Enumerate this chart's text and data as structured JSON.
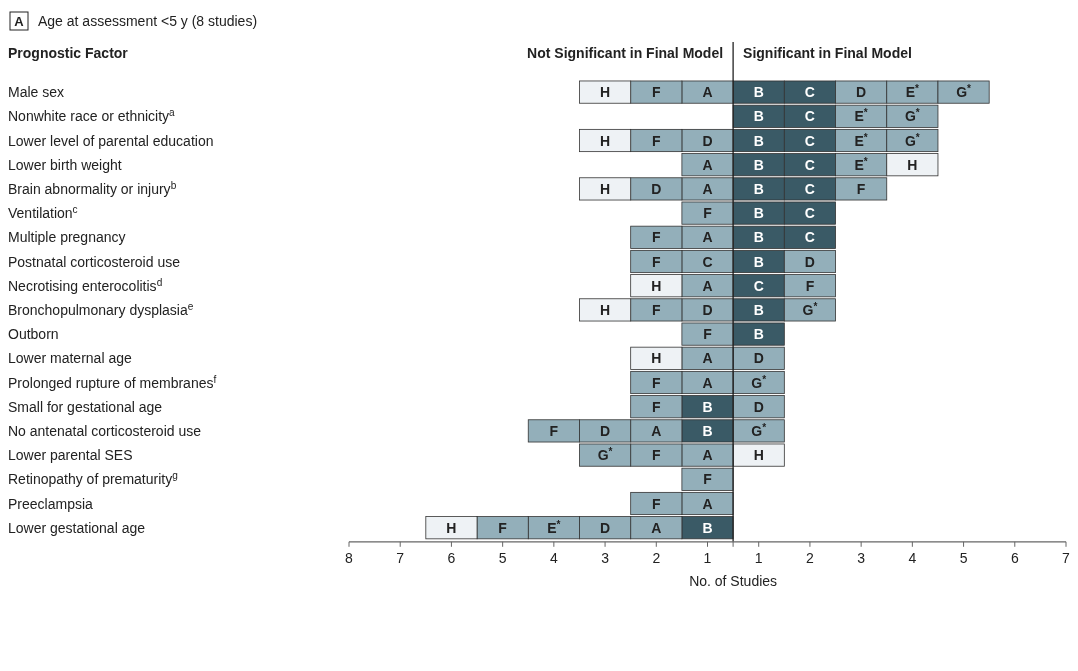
{
  "chart_data": {
    "type": "bar",
    "orientation": "horizontal",
    "stacked": true,
    "title": "Age at assessment <5 y (8 studies)",
    "ylabel": "Prognostic Factor",
    "xlabel": "No. of Studies",
    "annotations": [
      "A",
      "Not Significant in Final Model",
      "Significant in Final Model"
    ],
    "categories": [
      "Male sex",
      "Nonwhite race or ethnicity$^{a}$",
      "Lower level of parental education",
      "Lower birth weight",
      "Brain abnormality or injury$^{b}$",
      "Ventilation$^{c}$",
      "Multiple pregnancy",
      "Postnatal corticosteroid use",
      "Necrotising enterocolitis$^{d}$",
      "Bronchopulmonary dysplasia$^{e}$",
      "Outborn",
      "Lower maternal age",
      "Prolonged rupture of membranes$^{f}$",
      "Small for gestational age",
      "No antenatal corticosteroid use",
      "Lower parental SES",
      "Retinopathy of prematurity$^{g}$",
      "Preeclampsia",
      "Lower gestational age"
    ],
    "xlim": [
      -7.5,
      6.5
    ],
    "xticks": [
      {
        "value": -7.5,
        "label": "8"
      },
      {
        "value": -6.5,
        "label": "7"
      },
      {
        "value": -5.5,
        "label": "6"
      },
      {
        "value": -4.5,
        "label": "5"
      },
      {
        "value": -3.5,
        "label": "4"
      },
      {
        "value": -2.5,
        "label": "3"
      },
      {
        "value": -1.5,
        "label": "2"
      },
      {
        "value": -0.5,
        "label": "1"
      },
      {
        "value": 0,
        "label": null
      },
      {
        "value": 0.5,
        "label": "1"
      },
      {
        "value": 1.5,
        "label": "2"
      },
      {
        "value": 2.5,
        "label": "3"
      },
      {
        "value": 3.5,
        "label": "4"
      },
      {
        "value": 4.5,
        "label": "5"
      },
      {
        "value": 5.5,
        "label": "6"
      },
      {
        "value": 6.5,
        "label": "7"
      }
    ],
    "ref_lines": [
      {
        "axis": "x",
        "value": 0,
        "color": "#222222"
      }
    ],
    "series": [
      {
        "values": [
          1,
          1,
          1,
          1,
          1,
          1,
          1,
          1,
          1,
          1,
          1,
          1,
          1,
          1,
          1,
          1,
          null,
          null,
          null
        ],
        "colors": [
          "#3a5a66",
          "#3a5a66",
          "#3a5a66",
          "#3a5a66",
          "#3a5a66",
          "#3a5a66",
          "#3a5a66",
          "#3a5a66",
          "#3a5a66",
          "#3a5a66",
          "#3a5a66",
          "#93afba",
          "#93afba",
          "#93afba",
          "#93afba",
          "#eef2f5",
          null,
          null,
          null
        ],
        "value_labels": [
          "B",
          "B",
          "B",
          "B",
          "B",
          "B",
          "B",
          "B",
          "C",
          "B",
          "B",
          "D",
          "G$^{*}$",
          "D",
          "G$^{*}$",
          "H",
          null,
          null,
          null
        ]
      },
      {
        "values": [
          1,
          1,
          1,
          1,
          1,
          1,
          1,
          1,
          1,
          1,
          null,
          null,
          null,
          null,
          null,
          null,
          null,
          null,
          null
        ],
        "colors": [
          "#3a5a66",
          "#3a5a66",
          "#3a5a66",
          "#3a5a66",
          "#3a5a66",
          "#3a5a66",
          "#3a5a66",
          "#93afba",
          "#93afba",
          "#93afba",
          null,
          null,
          null,
          null,
          null,
          null,
          null,
          null,
          null
        ],
        "value_labels": [
          "C",
          "C",
          "C",
          "C",
          "C",
          "C",
          "C",
          "D",
          "F",
          "G$^{*}$",
          null,
          null,
          null,
          null,
          null,
          null,
          null,
          null,
          null
        ]
      },
      {
        "values": [
          1,
          1,
          1,
          1,
          1,
          null,
          null,
          null,
          null,
          null,
          null,
          null,
          null,
          null,
          null,
          null,
          null,
          null,
          null
        ],
        "colors": [
          "#93afba",
          "#93afba",
          "#93afba",
          "#93afba",
          "#93afba",
          null,
          null,
          null,
          null,
          null,
          null,
          null,
          null,
          null,
          null,
          null,
          null,
          null,
          null
        ],
        "value_labels": [
          "D",
          "E$^{*}$",
          "E$^{*}$",
          "E$^{*}$",
          "F",
          null,
          null,
          null,
          null,
          null,
          null,
          null,
          null,
          null,
          null,
          null,
          null,
          null,
          null
        ]
      },
      {
        "values": [
          1,
          1,
          1,
          1,
          null,
          null,
          null,
          null,
          null,
          null,
          null,
          null,
          null,
          null,
          null,
          null,
          null,
          null,
          null
        ],
        "colors": [
          "#93afba",
          "#93afba",
          "#93afba",
          "#eef2f5",
          null,
          null,
          null,
          null,
          null,
          null,
          null,
          null,
          null,
          null,
          null,
          null,
          null,
          null,
          null
        ],
        "value_labels": [
          "E$^{*}$",
          "G$^{*}$",
          "G$^{*}$",
          "H",
          null,
          null,
          null,
          null,
          null,
          null,
          null,
          null,
          null,
          null,
          null,
          null,
          null,
          null,
          null
        ]
      },
      {
        "values": [
          1,
          null,
          null,
          null,
          null,
          null,
          null,
          null,
          null,
          null,
          null,
          null,
          null,
          null,
          null,
          null,
          null,
          null,
          null
        ],
        "colors": [
          "#93afba",
          null,
          null,
          null,
          null,
          null,
          null,
          null,
          null,
          null,
          null,
          null,
          null,
          null,
          null,
          null,
          null,
          null,
          null
        ],
        "value_labels": [
          "G$^{*}$",
          null,
          null,
          null,
          null,
          null,
          null,
          null,
          null,
          null,
          null,
          null,
          null,
          null,
          null,
          null,
          null,
          null,
          null
        ]
      },
      {
        "values": [
          -1,
          null,
          -1,
          -1,
          -1,
          -1,
          -1,
          -1,
          -1,
          -1,
          -1,
          -1,
          -1,
          -1,
          -1,
          -1,
          -1,
          -1,
          -1
        ],
        "colors": [
          "#93afba",
          null,
          "#93afba",
          "#93afba",
          "#93afba",
          "#93afba",
          "#93afba",
          "#93afba",
          "#93afba",
          "#93afba",
          "#93afba",
          "#93afba",
          "#93afba",
          "#3a5a66",
          "#3a5a66",
          "#93afba",
          "#93afba",
          "#93afba",
          "#3a5a66"
        ],
        "value_labels": [
          "A",
          null,
          "D",
          "A",
          "A",
          "F",
          "A",
          "C",
          "A",
          "D",
          "F",
          "A",
          "A",
          "B",
          "B",
          "A",
          "F",
          "A",
          "B"
        ]
      },
      {
        "values": [
          -1,
          null,
          -1,
          null,
          -1,
          null,
          -1,
          -1,
          -1,
          -1,
          null,
          -1,
          -1,
          -1,
          -1,
          -1,
          null,
          -1,
          -1
        ],
        "colors": [
          "#93afba",
          null,
          "#93afba",
          null,
          "#93afba",
          null,
          "#93afba",
          "#93afba",
          "#eef2f5",
          "#93afba",
          null,
          "#eef2f5",
          "#93afba",
          "#93afba",
          "#93afba",
          "#93afba",
          null,
          "#93afba",
          "#93afba"
        ],
        "value_labels": [
          "F",
          null,
          "F",
          null,
          "D",
          null,
          "F",
          "F",
          "H",
          "F",
          null,
          "H",
          "F",
          "F",
          "A",
          "F",
          null,
          "F",
          "A"
        ]
      },
      {
        "values": [
          -1,
          null,
          -1,
          null,
          -1,
          null,
          null,
          null,
          null,
          -1,
          null,
          null,
          null,
          null,
          -1,
          -1,
          null,
          null,
          -1
        ],
        "colors": [
          "#eef2f5",
          null,
          "#eef2f5",
          null,
          "#eef2f5",
          null,
          null,
          null,
          null,
          "#eef2f5",
          null,
          null,
          null,
          null,
          "#93afba",
          "#93afba",
          null,
          null,
          "#93afba"
        ],
        "value_labels": [
          "H",
          null,
          "H",
          null,
          "H",
          null,
          null,
          null,
          null,
          "H",
          null,
          null,
          null,
          null,
          "D",
          "G$^{*}$",
          null,
          null,
          "D"
        ]
      },
      {
        "values": [
          null,
          null,
          null,
          null,
          null,
          null,
          null,
          null,
          null,
          null,
          null,
          null,
          null,
          null,
          -1,
          null,
          null,
          null,
          -1
        ],
        "colors": [
          null,
          null,
          null,
          null,
          null,
          null,
          null,
          null,
          null,
          null,
          null,
          null,
          null,
          null,
          "#93afba",
          null,
          null,
          null,
          "#93afba"
        ],
        "value_labels": [
          null,
          null,
          null,
          null,
          null,
          null,
          null,
          null,
          null,
          null,
          null,
          null,
          null,
          null,
          "F",
          null,
          null,
          null,
          "E$^{*}$"
        ]
      },
      {
        "values": [
          null,
          null,
          null,
          null,
          null,
          null,
          null,
          null,
          null,
          null,
          null,
          null,
          null,
          null,
          null,
          null,
          null,
          null,
          -1
        ],
        "colors": [
          null,
          null,
          null,
          null,
          null,
          null,
          null,
          null,
          null,
          null,
          null,
          null,
          null,
          null,
          null,
          null,
          null,
          null,
          "#93afba"
        ],
        "value_labels": [
          null,
          null,
          null,
          null,
          null,
          null,
          null,
          null,
          null,
          null,
          null,
          null,
          null,
          null,
          null,
          null,
          null,
          null,
          "F"
        ]
      },
      {
        "values": [
          null,
          null,
          null,
          null,
          null,
          null,
          null,
          null,
          null,
          null,
          null,
          null,
          null,
          null,
          null,
          null,
          null,
          null,
          -1
        ],
        "colors": [
          null,
          null,
          null,
          null,
          null,
          null,
          null,
          null,
          null,
          null,
          null,
          null,
          null,
          null,
          null,
          null,
          null,
          null,
          "#eef2f5"
        ],
        "value_labels": [
          null,
          null,
          null,
          null,
          null,
          null,
          null,
          null,
          null,
          null,
          null,
          null,
          null,
          null,
          null,
          null,
          null,
          null,
          "H"
        ]
      }
    ]
  }
}
